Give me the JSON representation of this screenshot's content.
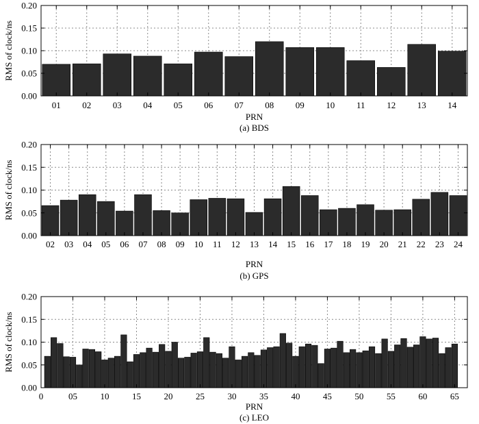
{
  "chart_data": [
    {
      "type": "bar",
      "caption": "(a) BDS",
      "xlabel": "PRN",
      "ylabel": "RMS of clock/ns",
      "ylim": [
        0,
        0.2
      ],
      "yticks": [
        "0.00",
        "0.05",
        "0.10",
        "0.15",
        "0.20"
      ],
      "grid": "dotted",
      "categories": [
        "01",
        "02",
        "03",
        "04",
        "05",
        "06",
        "07",
        "08",
        "09",
        "10",
        "11",
        "12",
        "13",
        "14"
      ],
      "values": [
        0.07,
        0.071,
        0.093,
        0.088,
        0.071,
        0.097,
        0.087,
        0.12,
        0.107,
        0.107,
        0.078,
        0.063,
        0.114,
        0.099
      ]
    },
    {
      "type": "bar",
      "caption": "(b) GPS",
      "xlabel": "PRN",
      "ylabel": "RMS of clock/ns",
      "ylim": [
        0,
        0.2
      ],
      "yticks": [
        "0.00",
        "0.05",
        "0.10",
        "0.15",
        "0.20"
      ],
      "grid": "dotted",
      "categories": [
        "02",
        "03",
        "04",
        "05",
        "06",
        "07",
        "08",
        "09",
        "10",
        "11",
        "12",
        "13",
        "14",
        "15",
        "16",
        "17",
        "18",
        "19",
        "20",
        "21",
        "22",
        "23",
        "24"
      ],
      "values": [
        0.066,
        0.078,
        0.09,
        0.075,
        0.054,
        0.09,
        0.055,
        0.05,
        0.079,
        0.082,
        0.081,
        0.051,
        0.081,
        0.108,
        0.088,
        0.057,
        0.06,
        0.068,
        0.056,
        0.057,
        0.08,
        0.095,
        0.088
      ]
    },
    {
      "type": "bar",
      "caption": "(c) LEO",
      "xlabel": "PRN",
      "ylabel": "RMS of clock/ns",
      "ylim": [
        0,
        0.2
      ],
      "xlim": [
        0,
        67
      ],
      "yticks": [
        "0.00",
        "0.05",
        "0.10",
        "0.15",
        "0.20"
      ],
      "xticks": [
        "0",
        "05",
        "10",
        "15",
        "20",
        "25",
        "30",
        "35",
        "40",
        "45",
        "50",
        "55",
        "60",
        "65"
      ],
      "xtick_values": [
        0,
        5,
        10,
        15,
        20,
        25,
        30,
        35,
        40,
        45,
        50,
        55,
        60,
        65
      ],
      "grid": "dotted",
      "x": [
        1,
        2,
        3,
        4,
        5,
        6,
        7,
        8,
        9,
        10,
        11,
        12,
        13,
        14,
        15,
        16,
        17,
        18,
        19,
        20,
        21,
        22,
        23,
        24,
        25,
        26,
        27,
        28,
        29,
        30,
        31,
        32,
        33,
        34,
        35,
        36,
        37,
        38,
        39,
        40,
        41,
        42,
        43,
        44,
        45,
        46,
        47,
        48,
        49,
        50,
        51,
        52,
        53,
        54,
        55,
        56,
        57,
        58,
        59,
        60,
        61,
        62,
        63,
        64,
        65
      ],
      "values": [
        0.069,
        0.11,
        0.097,
        0.068,
        0.067,
        0.05,
        0.085,
        0.084,
        0.079,
        0.061,
        0.065,
        0.069,
        0.116,
        0.057,
        0.073,
        0.077,
        0.087,
        0.078,
        0.095,
        0.08,
        0.1,
        0.065,
        0.067,
        0.076,
        0.079,
        0.11,
        0.078,
        0.075,
        0.065,
        0.09,
        0.061,
        0.069,
        0.077,
        0.071,
        0.083,
        0.088,
        0.09,
        0.119,
        0.098,
        0.069,
        0.09,
        0.096,
        0.093,
        0.053,
        0.085,
        0.087,
        0.102,
        0.077,
        0.084,
        0.077,
        0.081,
        0.09,
        0.075,
        0.107,
        0.08,
        0.094,
        0.108,
        0.089,
        0.094,
        0.112,
        0.107,
        0.109,
        0.075,
        0.088,
        0.096
      ]
    }
  ]
}
